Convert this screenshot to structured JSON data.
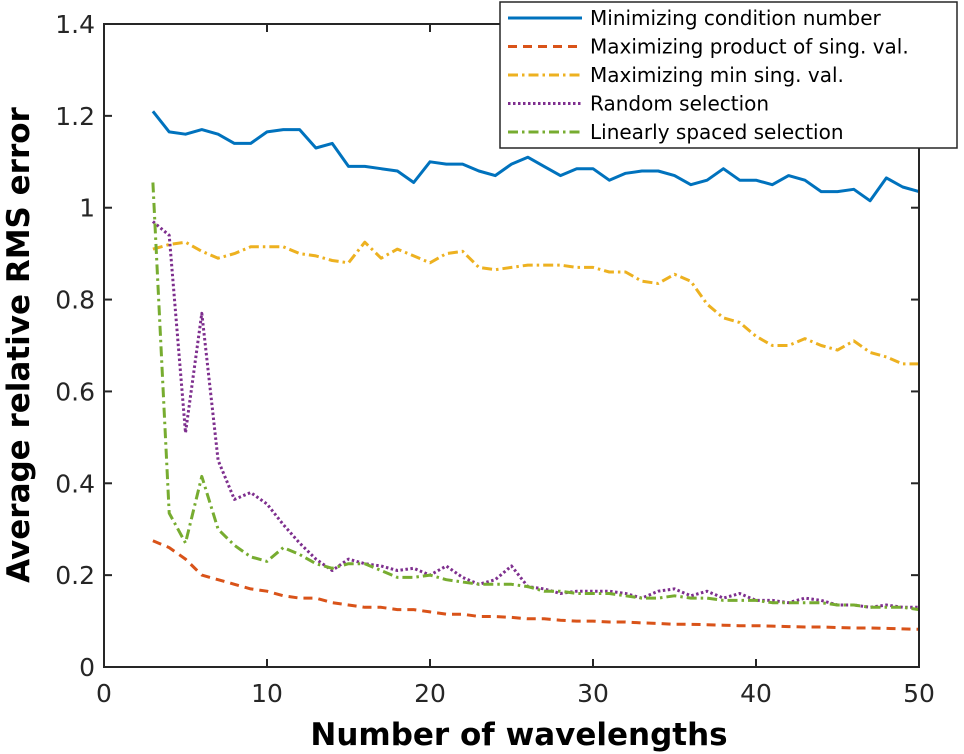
{
  "chart_data": {
    "type": "line",
    "xlabel": "Number of wavelengths",
    "ylabel": "Average relative RMS error",
    "xlim": [
      0,
      50
    ],
    "ylim": [
      0,
      1.4
    ],
    "xticks": [
      0,
      10,
      20,
      30,
      40,
      50
    ],
    "xtick_labels": [
      "0",
      "10",
      "20",
      "30",
      "40",
      "50"
    ],
    "yticks": [
      0,
      0.2,
      0.4,
      0.6,
      0.8,
      1.0,
      1.2,
      1.4
    ],
    "ytick_labels": [
      "0",
      "0.2",
      "0.4",
      "0.6",
      "0.8",
      "1",
      "1.2",
      "1.4"
    ],
    "grid": false,
    "legend_position": "top-right",
    "x": [
      3,
      4,
      5,
      6,
      7,
      8,
      9,
      10,
      11,
      12,
      13,
      14,
      15,
      16,
      17,
      18,
      19,
      20,
      21,
      22,
      23,
      24,
      25,
      26,
      27,
      28,
      29,
      30,
      31,
      32,
      33,
      34,
      35,
      36,
      37,
      38,
      39,
      40,
      41,
      42,
      43,
      44,
      45,
      46,
      47,
      48,
      49,
      50
    ],
    "series": [
      {
        "name": "Minimizing condition number",
        "color": "#0072BD",
        "dash": "solid",
        "values": [
          1.21,
          1.165,
          1.16,
          1.17,
          1.16,
          1.14,
          1.14,
          1.165,
          1.17,
          1.17,
          1.13,
          1.14,
          1.09,
          1.09,
          1.085,
          1.08,
          1.055,
          1.1,
          1.095,
          1.095,
          1.08,
          1.07,
          1.095,
          1.11,
          1.09,
          1.07,
          1.085,
          1.085,
          1.06,
          1.075,
          1.08,
          1.08,
          1.07,
          1.05,
          1.06,
          1.085,
          1.06,
          1.06,
          1.05,
          1.07,
          1.06,
          1.035,
          1.035,
          1.04,
          1.015,
          1.065,
          1.045,
          1.035
        ]
      },
      {
        "name": "Maximizing product of sing. val.",
        "color": "#D95319",
        "dash": "dashed",
        "values": [
          0.275,
          0.26,
          0.235,
          0.2,
          0.19,
          0.18,
          0.17,
          0.165,
          0.155,
          0.15,
          0.15,
          0.14,
          0.135,
          0.13,
          0.13,
          0.125,
          0.125,
          0.12,
          0.115,
          0.115,
          0.11,
          0.11,
          0.108,
          0.105,
          0.105,
          0.102,
          0.1,
          0.1,
          0.098,
          0.098,
          0.096,
          0.095,
          0.093,
          0.093,
          0.092,
          0.091,
          0.09,
          0.09,
          0.089,
          0.088,
          0.087,
          0.087,
          0.086,
          0.085,
          0.085,
          0.084,
          0.083,
          0.082
        ]
      },
      {
        "name": "Maximizing min sing. val.",
        "color": "#EDB120",
        "dash": "dashdot",
        "values": [
          0.91,
          0.92,
          0.925,
          0.905,
          0.89,
          0.9,
          0.915,
          0.915,
          0.915,
          0.9,
          0.895,
          0.885,
          0.88,
          0.925,
          0.89,
          0.91,
          0.895,
          0.88,
          0.9,
          0.905,
          0.87,
          0.865,
          0.87,
          0.875,
          0.875,
          0.875,
          0.87,
          0.87,
          0.86,
          0.86,
          0.84,
          0.835,
          0.855,
          0.84,
          0.79,
          0.76,
          0.75,
          0.72,
          0.7,
          0.7,
          0.715,
          0.7,
          0.69,
          0.71,
          0.685,
          0.675,
          0.66,
          0.66
        ]
      },
      {
        "name": "Random selection",
        "color": "#7E2F8E",
        "dash": "dotted",
        "values": [
          0.97,
          0.94,
          0.51,
          0.77,
          0.45,
          0.365,
          0.38,
          0.355,
          0.31,
          0.27,
          0.235,
          0.21,
          0.235,
          0.225,
          0.22,
          0.21,
          0.215,
          0.2,
          0.22,
          0.195,
          0.18,
          0.19,
          0.22,
          0.175,
          0.17,
          0.16,
          0.165,
          0.165,
          0.165,
          0.16,
          0.15,
          0.165,
          0.17,
          0.155,
          0.165,
          0.15,
          0.16,
          0.145,
          0.145,
          0.14,
          0.15,
          0.145,
          0.135,
          0.135,
          0.13,
          0.135,
          0.13,
          0.13
        ]
      },
      {
        "name": "Linearly spaced selection",
        "color": "#77AC30",
        "dash": "dashdot",
        "values": [
          1.055,
          0.335,
          0.27,
          0.415,
          0.3,
          0.265,
          0.24,
          0.23,
          0.26,
          0.245,
          0.225,
          0.215,
          0.225,
          0.225,
          0.21,
          0.195,
          0.195,
          0.2,
          0.19,
          0.185,
          0.18,
          0.18,
          0.18,
          0.175,
          0.165,
          0.165,
          0.16,
          0.16,
          0.16,
          0.155,
          0.15,
          0.15,
          0.155,
          0.15,
          0.15,
          0.145,
          0.145,
          0.145,
          0.14,
          0.14,
          0.14,
          0.14,
          0.135,
          0.135,
          0.13,
          0.13,
          0.13,
          0.125
        ]
      }
    ]
  }
}
